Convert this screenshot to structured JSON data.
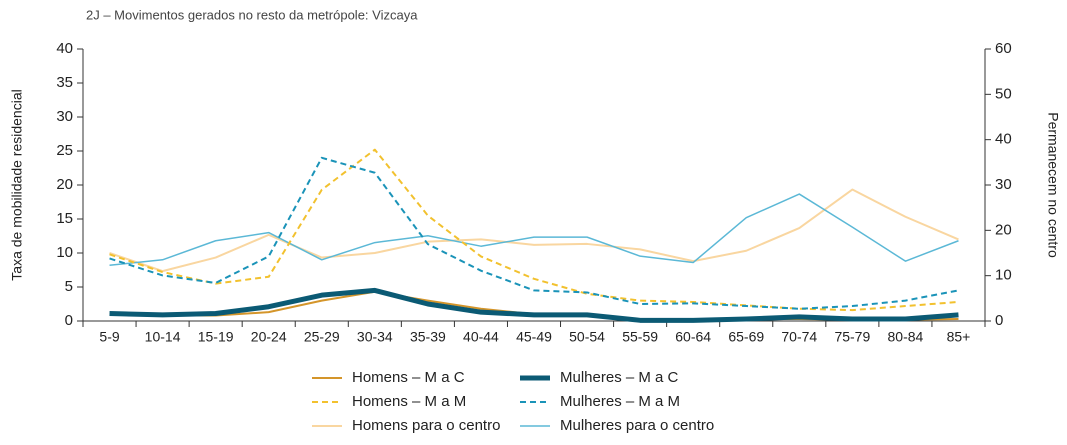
{
  "chart_data": {
    "type": "line",
    "title": "2J – Movimentos gerados no resto da metrópole: Vizcaya",
    "y_label": "Taxa de mobilidade residencial",
    "y2_label": "Permanecem no centro",
    "categories": [
      "5-9",
      "10-14",
      "15-19",
      "20-24",
      "25-29",
      "30-34",
      "35-39",
      "40-44",
      "45-49",
      "50-54",
      "55-59",
      "60-64",
      "65-69",
      "70-74",
      "75-79",
      "80-84",
      "85+"
    ],
    "ylim": [
      0,
      40
    ],
    "yticks": [
      0,
      5,
      10,
      15,
      20,
      25,
      30,
      35,
      40
    ],
    "y2lim": [
      0,
      60
    ],
    "y2ticks": [
      0,
      10,
      20,
      30,
      40,
      50,
      60
    ],
    "series": [
      {
        "name": "Homens – M a C",
        "color": "#d4952a",
        "width": 2,
        "dash": "solid",
        "axis": "y",
        "values": [
          1,
          0.8,
          0.8,
          1.3,
          3,
          4.3,
          3,
          1.8,
          1,
          0.8,
          0.2,
          0.2,
          0.3,
          0.3,
          0.2,
          0.2,
          0.3
        ]
      },
      {
        "name": "Mulheres – M a C",
        "color": "#0b5a74",
        "width": 5,
        "dash": "solid",
        "axis": "y",
        "values": [
          1.1,
          0.9,
          1.1,
          2.1,
          3.8,
          4.5,
          2.5,
          1.3,
          0.9,
          0.9,
          0.1,
          0.1,
          0.3,
          0.6,
          0.3,
          0.3,
          0.9
        ]
      },
      {
        "name": "Homens – M a M",
        "color": "#f2c12e",
        "width": 2,
        "dash": "dashed",
        "axis": "y",
        "values": [
          9.8,
          7.2,
          5.5,
          6.5,
          19.3,
          25.2,
          15.5,
          9.5,
          6.2,
          4,
          3,
          2.8,
          2.3,
          1.8,
          1.6,
          2.2,
          2.8
        ]
      },
      {
        "name": "Mulheres – M a M",
        "color": "#1a93b8",
        "width": 2,
        "dash": "dashed",
        "axis": "y",
        "values": [
          9.2,
          6.7,
          5.6,
          9.5,
          24,
          21.8,
          11.3,
          7.4,
          4.5,
          4.2,
          2.5,
          2.6,
          2.2,
          1.8,
          2.2,
          3,
          4.5
        ]
      },
      {
        "name": "Homens para o centro",
        "color": "#f9d6a0",
        "width": 2,
        "dash": "solid",
        "axis": "y2",
        "values": [
          15,
          11,
          14,
          19,
          14,
          15,
          17.5,
          18,
          16.8,
          17,
          15.8,
          13.2,
          15.5,
          20.5,
          29,
          23,
          18
        ]
      },
      {
        "name": "Mulheres para o centro",
        "color": "#5bb8d6",
        "width": 1.5,
        "dash": "solid",
        "axis": "y2",
        "values": [
          12.3,
          13.5,
          17.7,
          19.5,
          13.5,
          17.3,
          18.8,
          16.5,
          18.5,
          18.5,
          14.3,
          12.9,
          22.8,
          28,
          20.7,
          13.2,
          17.7
        ]
      }
    ]
  }
}
